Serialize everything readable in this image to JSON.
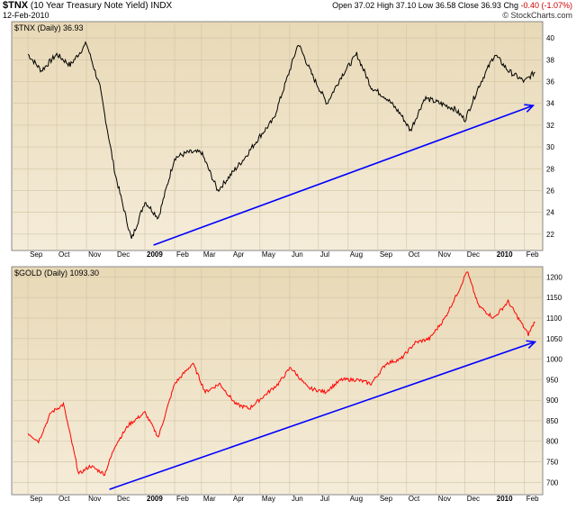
{
  "header": {
    "symbol": "$TNX",
    "name": "(10 Year Treasury Note Yield)",
    "exchange": "INDX",
    "date": "12-Feb-2010",
    "open_label": "Open",
    "open": "37.02",
    "high_label": "High",
    "high": "37.10",
    "low_label": "Low",
    "low": "36.58",
    "close_label": "Close",
    "close": "36.93",
    "chg_label": "Chg",
    "chg": "-0.40 (-1.07%)",
    "brand": "© StockCharts.com"
  },
  "colors": {
    "panel_bg_top": "#e8d9b6",
    "panel_bg_bottom": "#f5ecd9",
    "tnx_line": "#000000",
    "gold_line": "#ff0000",
    "trend": "#0000ff",
    "grid": "#d0c4a6"
  },
  "chart_data": [
    {
      "type": "line",
      "panel_label": "$TNX (Daily) 36.93",
      "y_ticks": [
        "22",
        "24",
        "26",
        "28",
        "30",
        "32",
        "34",
        "36",
        "38",
        "40"
      ],
      "ylim": [
        20.5,
        41.5
      ],
      "x_ticks": [
        "Sep",
        "Oct",
        "Nov",
        "Dec",
        "2009",
        "Feb",
        "Mar",
        "Apr",
        "May",
        "Jun",
        "Jul",
        "Aug",
        "Sep",
        "Oct",
        "Nov",
        "Dec",
        "2010",
        "Feb"
      ],
      "series": [
        {
          "x": [
            "2008-09-01",
            "2008-09-15",
            "2008-10-01",
            "2008-10-15",
            "2008-11-01",
            "2008-11-15",
            "2008-12-01",
            "2008-12-18",
            "2009-01-01",
            "2009-01-15",
            "2009-02-01",
            "2009-02-15",
            "2009-03-01",
            "2009-03-18",
            "2009-04-01",
            "2009-04-15",
            "2009-05-01",
            "2009-05-15",
            "2009-06-01",
            "2009-06-10",
            "2009-06-25",
            "2009-07-10",
            "2009-07-25",
            "2009-08-10",
            "2009-08-25",
            "2009-09-10",
            "2009-09-25",
            "2009-10-05",
            "2009-10-20",
            "2009-11-05",
            "2009-11-20",
            "2009-12-01",
            "2009-12-15",
            "2010-01-01",
            "2010-01-15",
            "2010-02-01",
            "2010-02-12"
          ],
          "values": [
            38.5,
            37.0,
            38.5,
            37.5,
            39.5,
            35.5,
            27.5,
            21.5,
            25.0,
            23.5,
            29.0,
            29.5,
            29.5,
            26.0,
            27.5,
            29.0,
            31.0,
            32.5,
            37.0,
            39.5,
            36.5,
            34.0,
            36.5,
            38.5,
            35.5,
            34.5,
            33.0,
            31.5,
            34.5,
            34.0,
            33.5,
            32.5,
            35.5,
            38.5,
            37.0,
            36.0,
            36.9
          ]
        }
      ],
      "trend": {
        "from": [
          "2009-01-10",
          21.0
        ],
        "to": [
          "2010-02-10",
          33.8
        ]
      }
    },
    {
      "type": "line",
      "panel_label": "$GOLD (Daily) 1093.30",
      "y_ticks": [
        "700",
        "750",
        "800",
        "850",
        "900",
        "950",
        "1000",
        "1050",
        "1100",
        "1150",
        "1200"
      ],
      "ylim": [
        670,
        1225
      ],
      "x_ticks": [
        "Sep",
        "Oct",
        "Nov",
        "Dec",
        "2009",
        "Feb",
        "Mar",
        "Apr",
        "May",
        "Jun",
        "Jul",
        "Aug",
        "Sep",
        "Oct",
        "Nov",
        "Dec",
        "2010",
        "Feb"
      ],
      "series": [
        {
          "x": [
            "2008-09-01",
            "2008-09-12",
            "2008-09-25",
            "2008-10-08",
            "2008-10-24",
            "2008-11-05",
            "2008-11-20",
            "2008-12-01",
            "2008-12-15",
            "2009-01-01",
            "2009-01-15",
            "2009-02-01",
            "2009-02-20",
            "2009-03-05",
            "2009-03-20",
            "2009-04-06",
            "2009-04-20",
            "2009-05-05",
            "2009-05-20",
            "2009-06-02",
            "2009-06-20",
            "2009-07-08",
            "2009-07-25",
            "2009-08-10",
            "2009-08-25",
            "2009-09-10",
            "2009-09-25",
            "2009-10-10",
            "2009-10-25",
            "2009-11-10",
            "2009-11-25",
            "2009-12-03",
            "2009-12-15",
            "2009-12-31",
            "2010-01-15",
            "2010-02-05",
            "2010-02-12"
          ],
          "values": [
            820,
            800,
            870,
            890,
            720,
            740,
            720,
            790,
            840,
            870,
            810,
            940,
            990,
            920,
            940,
            890,
            880,
            910,
            940,
            980,
            930,
            920,
            950,
            950,
            940,
            990,
            1000,
            1040,
            1050,
            1100,
            1170,
            1215,
            1130,
            1100,
            1140,
            1060,
            1093
          ]
        }
      ],
      "trend": {
        "from": [
          "2008-11-25",
          683
        ],
        "to": [
          "2010-02-12",
          1042
        ]
      }
    }
  ]
}
